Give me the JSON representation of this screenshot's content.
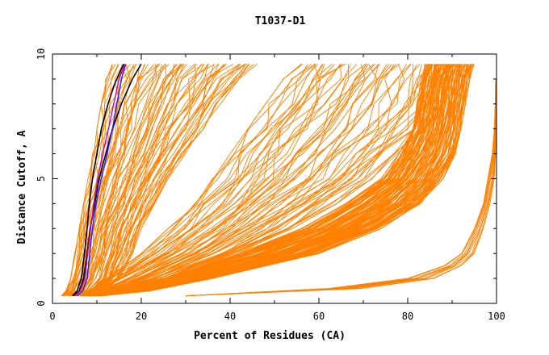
{
  "chart_data": {
    "type": "line",
    "title": "T1037-D1",
    "xlabel": "Percent of Residues (CA)",
    "ylabel": "Distance Cutoff, A",
    "xlim": [
      0,
      100
    ],
    "ylim": [
      0,
      10
    ],
    "x_ticks": [
      "0",
      "20",
      "40",
      "60",
      "80",
      "100"
    ],
    "y_ticks": [
      "0",
      "5",
      "10"
    ],
    "grid": false,
    "legend": "none",
    "colors": {
      "models": "#ff8000",
      "highlight_black": "#000000",
      "highlight_blue": "#2020ff",
      "highlight_purple": "#b000d0"
    },
    "series_groups": [
      {
        "color": "#ff8000",
        "count": 70,
        "y": [
          0.3,
          0.5,
          1,
          2,
          3,
          4,
          5,
          6,
          7,
          8,
          9,
          9.6
        ],
        "x_min": [
          2,
          3,
          4,
          5,
          6,
          7,
          8,
          9,
          10,
          11,
          12,
          13
        ],
        "x_max": [
          9,
          12,
          15,
          18,
          20,
          23,
          26,
          30,
          34,
          38,
          42,
          46
        ]
      },
      {
        "color": "#ff8000",
        "count": 60,
        "y": [
          0.3,
          0.5,
          1,
          2,
          3,
          4,
          5,
          6,
          7,
          8,
          9,
          9.6
        ],
        "x_min": [
          4,
          8,
          12,
          20,
          26,
          31,
          36,
          40,
          44,
          48,
          52,
          55
        ],
        "x_max": [
          9,
          16,
          26,
          42,
          54,
          64,
          72,
          78,
          84,
          88,
          90,
          91
        ]
      },
      {
        "color": "#ff8000",
        "count": 110,
        "y": [
          0.3,
          0.5,
          1,
          2,
          3,
          4,
          5,
          6,
          7,
          8,
          9,
          9.6
        ],
        "x_min": [
          8,
          15,
          25,
          42,
          56,
          66,
          74,
          78,
          81,
          82,
          83,
          84
        ],
        "x_max": [
          11,
          22,
          36,
          60,
          74,
          83,
          88,
          91,
          92,
          93,
          94,
          95
        ]
      },
      {
        "color": "#ff8000",
        "count": 9,
        "y": [
          0.3,
          0.6,
          1,
          1.5,
          2,
          3,
          4,
          5,
          6,
          7,
          8,
          9
        ],
        "x_min": [
          30,
          62,
          80,
          88,
          92,
          95,
          97,
          98,
          99,
          99.5,
          99.7,
          99.8
        ],
        "x_max": [
          30,
          70,
          86,
          92,
          95,
          97,
          98.5,
          99.5,
          99.8,
          99.9,
          100,
          100
        ]
      }
    ],
    "highlighted_series": [
      {
        "color": "#000000",
        "x": [
          4.5,
          5.5,
          6.5,
          7.2,
          7.8,
          8.3,
          9,
          10,
          11,
          12.5,
          14,
          16
        ],
        "y": [
          0.3,
          0.5,
          1,
          2,
          3,
          4,
          5,
          6,
          7,
          8,
          8.8,
          9.6
        ]
      },
      {
        "color": "#000000",
        "x": [
          4.8,
          6,
          7,
          7.8,
          8.5,
          9.5,
          10.5,
          12,
          13.5,
          15.5,
          18,
          20
        ],
        "y": [
          0.3,
          0.5,
          1,
          2,
          3,
          4,
          5,
          6,
          7,
          8,
          9,
          9.6
        ]
      },
      {
        "color": "#2020ff",
        "x": [
          5.5,
          6.8,
          7.8,
          8.4,
          9,
          9.8,
          11,
          12.3,
          13.5,
          14.5,
          15.5,
          16.5
        ],
        "y": [
          0.3,
          0.5,
          1,
          2,
          3,
          4,
          5,
          6,
          7,
          8,
          9,
          9.6
        ]
      },
      {
        "color": "#b000d0",
        "x": [
          5,
          6.2,
          7.3,
          7.9,
          8.6,
          9.3,
          10.2,
          11.3,
          12.6,
          13.8,
          15,
          16.3
        ],
        "y": [
          0.3,
          0.5,
          1,
          2,
          3,
          4,
          5,
          6,
          7,
          8,
          9,
          9.6
        ]
      }
    ]
  }
}
